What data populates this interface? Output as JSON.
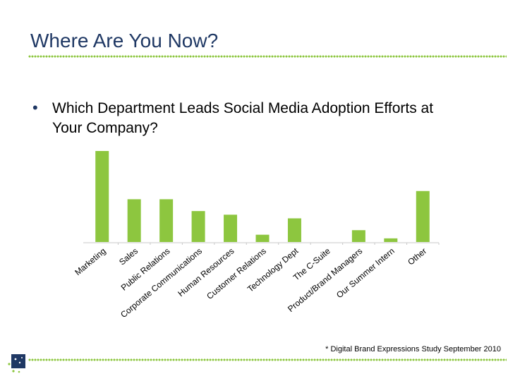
{
  "slide": {
    "title": "Where Are You Now?",
    "bullet": "•",
    "question": "Which Department Leads Social Media Adoption Efforts at Your Company?",
    "footnote": "* Digital Brand Expressions Study September 2010"
  },
  "colors": {
    "title": "#1f3864",
    "bar": "#8dc63f",
    "dots": "#8dc63f",
    "axis": "#c8c8c8",
    "logo": "#1f3864"
  },
  "chart_data": {
    "type": "bar",
    "categories": [
      "Marketing",
      "Sales",
      "Public Relations",
      "Corporate Communications",
      "Human Resources",
      "Customer Relations",
      "Technology Dept",
      "The C-Suite",
      "Product/Brand Managers",
      "Our Summer Intern",
      "Other"
    ],
    "values": [
      100,
      47,
      47,
      34,
      30,
      8,
      26,
      0,
      13,
      4,
      56
    ],
    "title": "",
    "xlabel": "",
    "ylabel": "",
    "ylim": [
      0,
      100
    ],
    "grid": false,
    "legend": "none"
  }
}
